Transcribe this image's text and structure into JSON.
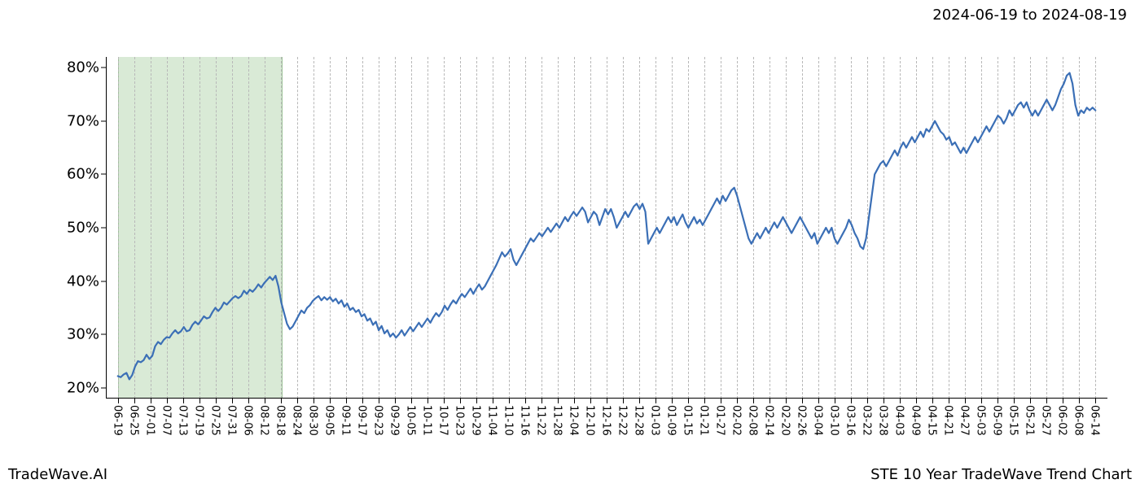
{
  "header": {
    "date_range": "2024-06-19 to 2024-08-19"
  },
  "footer": {
    "left": "TradeWave.AI",
    "right": "STE 10 Year TradeWave Trend Chart"
  },
  "chart": {
    "type": "line",
    "background_color": "#ffffff",
    "axis_color": "#000000",
    "grid": {
      "vertical_color": "#b8b8b8",
      "vertical_dash": "1 3",
      "vertical_width": 1
    },
    "highlight": {
      "x_start_index": 0,
      "x_end_index": 10,
      "fill": "#d9ead6",
      "border": "#9fc49a"
    },
    "ylim": [
      18,
      82
    ],
    "yticks": [
      {
        "v": 20,
        "label": "20%"
      },
      {
        "v": 30,
        "label": "30%"
      },
      {
        "v": 40,
        "label": "40%"
      },
      {
        "v": 50,
        "label": "50%"
      },
      {
        "v": 60,
        "label": "60%"
      },
      {
        "v": 70,
        "label": "70%"
      },
      {
        "v": 80,
        "label": "80%"
      }
    ],
    "xticks": [
      "06-19",
      "06-25",
      "07-01",
      "07-07",
      "07-13",
      "07-19",
      "07-25",
      "07-31",
      "08-06",
      "08-12",
      "08-18",
      "08-24",
      "08-30",
      "09-05",
      "09-11",
      "09-17",
      "09-23",
      "09-29",
      "10-05",
      "10-11",
      "10-17",
      "10-23",
      "10-29",
      "11-04",
      "11-10",
      "11-16",
      "11-22",
      "11-28",
      "12-04",
      "12-10",
      "12-16",
      "12-22",
      "12-28",
      "01-03",
      "01-09",
      "01-15",
      "01-21",
      "01-27",
      "02-02",
      "02-08",
      "02-14",
      "02-20",
      "02-26",
      "03-04",
      "03-10",
      "03-16",
      "03-22",
      "03-28",
      "04-03",
      "04-09",
      "04-15",
      "04-21",
      "04-27",
      "05-03",
      "05-09",
      "05-15",
      "05-21",
      "05-27",
      "06-02",
      "06-08",
      "06-14"
    ],
    "label_fontsize": 13,
    "ytick_fontsize": 18,
    "series": {
      "color": "#3b6fb6",
      "width": 2.2,
      "values": [
        22.2,
        22.0,
        22.5,
        22.8,
        21.6,
        22.4,
        24.0,
        25.0,
        24.8,
        25.2,
        26.2,
        25.4,
        26.0,
        27.8,
        28.6,
        28.2,
        29.0,
        29.5,
        29.4,
        30.2,
        30.8,
        30.2,
        30.6,
        31.4,
        30.6,
        30.8,
        31.8,
        32.4,
        31.9,
        32.6,
        33.4,
        33.0,
        33.2,
        34.2,
        35.0,
        34.4,
        35.0,
        36.0,
        35.6,
        36.2,
        36.8,
        37.2,
        36.8,
        37.2,
        38.2,
        37.6,
        38.4,
        38.0,
        38.6,
        39.4,
        38.8,
        39.6,
        40.2,
        40.8,
        40.2,
        41.0,
        39.0,
        36.0,
        34.0,
        32.0,
        31.0,
        31.5,
        32.5,
        33.5,
        34.5,
        34.0,
        35.0,
        35.5,
        36.3,
        36.8,
        37.2,
        36.4,
        37.0,
        36.5,
        37.0,
        36.2,
        36.7,
        35.8,
        36.4,
        35.2,
        35.8,
        34.6,
        35.0,
        34.2,
        34.6,
        33.4,
        33.8,
        32.6,
        33.0,
        31.8,
        32.4,
        30.8,
        31.6,
        30.2,
        30.8,
        29.6,
        30.2,
        29.4,
        30.0,
        30.8,
        29.8,
        30.6,
        31.4,
        30.6,
        31.4,
        32.2,
        31.4,
        32.2,
        33.0,
        32.2,
        33.2,
        34.0,
        33.4,
        34.2,
        35.4,
        34.6,
        35.6,
        36.4,
        35.8,
        36.8,
        37.6,
        37.0,
        37.8,
        38.6,
        37.6,
        38.6,
        39.4,
        38.4,
        39.0,
        40.0,
        41.0,
        42.0,
        43.0,
        44.2,
        45.4,
        44.6,
        45.2,
        46.0,
        44.0,
        43.0,
        44.0,
        45.0,
        46.0,
        47.0,
        48.0,
        47.4,
        48.2,
        49.0,
        48.4,
        49.2,
        50.0,
        49.2,
        50.0,
        50.8,
        50.0,
        51.0,
        52.0,
        51.2,
        52.2,
        53.0,
        52.2,
        53.0,
        53.8,
        53.0,
        51.0,
        52.0,
        53.0,
        52.4,
        50.5,
        52.0,
        53.5,
        52.5,
        53.5,
        52.0,
        50.0,
        51.0,
        52.0,
        53.0,
        52.0,
        53.0,
        54.0,
        54.5,
        53.5,
        54.5,
        53.0,
        47.0,
        48.0,
        49.0,
        50.0,
        49.0,
        50.0,
        51.0,
        52.0,
        51.0,
        52.0,
        50.5,
        51.5,
        52.5,
        51.0,
        50.0,
        51.0,
        52.0,
        50.8,
        51.5,
        50.5,
        51.5,
        52.5,
        53.5,
        54.5,
        55.5,
        54.5,
        56.0,
        55.0,
        56.0,
        57.0,
        57.5,
        56.0,
        54.0,
        52.0,
        50.0,
        48.0,
        47.0,
        48.0,
        49.0,
        48.0,
        49.0,
        50.0,
        49.0,
        50.0,
        51.0,
        50.0,
        51.0,
        52.0,
        51.0,
        50.0,
        49.0,
        50.0,
        51.0,
        52.0,
        51.0,
        50.0,
        49.0,
        48.0,
        49.0,
        47.0,
        48.0,
        49.0,
        50.0,
        49.0,
        50.0,
        48.0,
        47.0,
        48.0,
        49.0,
        50.0,
        51.5,
        50.5,
        49.0,
        48.0,
        46.5,
        46.0,
        48.0,
        52.0,
        56.0,
        60.0,
        61.0,
        62.0,
        62.5,
        61.5,
        62.5,
        63.5,
        64.5,
        63.5,
        65.0,
        66.0,
        65.0,
        66.0,
        67.0,
        66.0,
        67.0,
        68.0,
        67.0,
        68.5,
        68.0,
        69.0,
        70.0,
        69.0,
        68.0,
        67.5,
        66.5,
        67.0,
        65.5,
        66.0,
        65.0,
        64.0,
        65.0,
        64.0,
        65.0,
        66.0,
        67.0,
        66.0,
        67.0,
        68.0,
        69.0,
        68.0,
        69.0,
        70.0,
        71.0,
        70.5,
        69.5,
        70.5,
        72.0,
        71.0,
        72.0,
        73.0,
        73.5,
        72.5,
        73.5,
        72.0,
        71.0,
        72.0,
        71.0,
        72.0,
        73.0,
        74.0,
        73.0,
        72.0,
        73.0,
        74.5,
        76.0,
        77.0,
        78.5,
        79.0,
        77.0,
        73.0,
        71.0,
        72.0,
        71.5,
        72.5,
        72.0,
        72.5,
        72.0
      ]
    }
  }
}
